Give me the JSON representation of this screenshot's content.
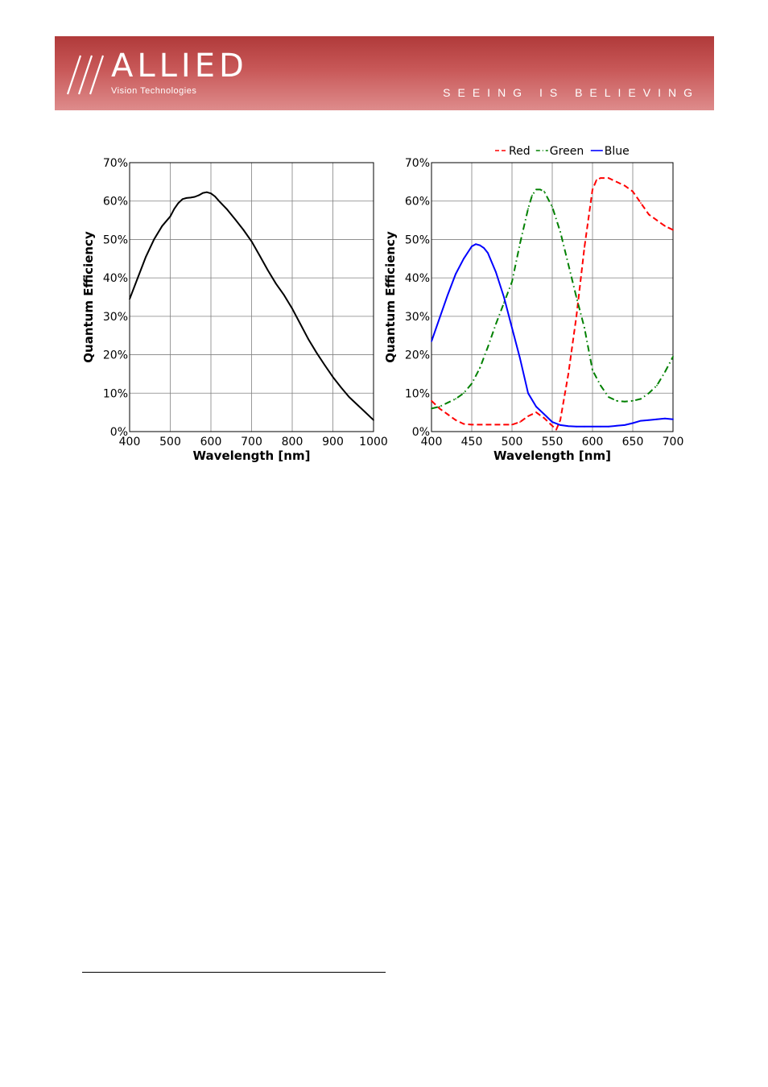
{
  "header": {
    "brand": "ALLIED",
    "brand_sub": "Vision Technologies",
    "tagline": "SEEING IS BELIEVING",
    "logo_icon": "triple-slash-logo-icon",
    "banner_color": "#c04848"
  },
  "chart_data": [
    {
      "type": "line",
      "title": "",
      "xlabel": "Wavelength [nm]",
      "ylabel": "Quantum Efficiency",
      "xlim": [
        400,
        1000
      ],
      "ylim": [
        0,
        70
      ],
      "xticks": [
        "400",
        "500",
        "600",
        "700",
        "800",
        "900",
        "1000"
      ],
      "yticks": [
        "0%",
        "10%",
        "20%",
        "30%",
        "40%",
        "50%",
        "60%",
        "70%"
      ],
      "grid": true,
      "legend": "none",
      "series": [
        {
          "color": "#000000",
          "style": "solid",
          "x": [
            400,
            420,
            440,
            460,
            480,
            500,
            510,
            520,
            530,
            540,
            550,
            560,
            570,
            580,
            590,
            600,
            610,
            620,
            640,
            660,
            680,
            700,
            720,
            740,
            760,
            780,
            800,
            820,
            840,
            860,
            880,
            900,
            920,
            940,
            960,
            980,
            1000
          ],
          "y": [
            34.5,
            40,
            45.5,
            50,
            53.5,
            56,
            58,
            59.5,
            60.5,
            60.8,
            60.9,
            61.1,
            61.5,
            62.1,
            62.3,
            62,
            61.2,
            60,
            57.8,
            55.2,
            52.5,
            49.5,
            45.8,
            42,
            38.5,
            35.5,
            32,
            28,
            24,
            20.5,
            17.3,
            14.2,
            11.5,
            9,
            7,
            5,
            3
          ]
        }
      ]
    },
    {
      "type": "line",
      "title": "",
      "xlabel": "Wavelength [nm]",
      "ylabel": "Quantum Efficiency",
      "xlim": [
        400,
        700
      ],
      "ylim": [
        0,
        70
      ],
      "xticks": [
        "400",
        "450",
        "500",
        "550",
        "600",
        "650",
        "700"
      ],
      "yticks": [
        "0%",
        "10%",
        "20%",
        "30%",
        "40%",
        "50%",
        "60%",
        "70%"
      ],
      "grid": true,
      "legend": "top",
      "series": [
        {
          "name": "Red",
          "color": "#ff0000",
          "style": "dashed",
          "x": [
            400,
            410,
            420,
            430,
            440,
            450,
            460,
            470,
            480,
            490,
            500,
            510,
            520,
            530,
            540,
            550,
            555,
            560,
            570,
            580,
            590,
            600,
            605,
            610,
            620,
            630,
            640,
            650,
            660,
            670,
            680,
            690,
            700
          ],
          "y": [
            8,
            6,
            4.5,
            3,
            2,
            1.8,
            1.8,
            1.8,
            1.8,
            1.8,
            1.8,
            2.5,
            4,
            5,
            3.5,
            1.5,
            0.5,
            3,
            15,
            30,
            48,
            63,
            65.5,
            66,
            66,
            65,
            64,
            62.5,
            59.5,
            56.5,
            55,
            53.5,
            52.5
          ]
        },
        {
          "name": "Green",
          "color": "#008000",
          "style": "dash-dot",
          "x": [
            400,
            410,
            420,
            430,
            440,
            450,
            460,
            470,
            480,
            490,
            500,
            510,
            520,
            525,
            530,
            535,
            540,
            550,
            560,
            570,
            580,
            590,
            600,
            610,
            620,
            630,
            640,
            650,
            660,
            670,
            680,
            690,
            700
          ],
          "y": [
            6,
            6.5,
            7.5,
            8.5,
            10,
            12.5,
            16.5,
            22,
            28,
            33.5,
            39,
            49,
            58,
            61.5,
            63,
            63,
            62.5,
            58.5,
            52,
            43.5,
            35,
            27,
            16,
            12,
            9,
            8,
            7.8,
            8,
            8.5,
            10,
            12,
            15.5,
            19.5
          ]
        },
        {
          "name": "Blue",
          "color": "#0000ff",
          "style": "solid",
          "x": [
            400,
            410,
            420,
            430,
            440,
            450,
            455,
            460,
            465,
            470,
            480,
            490,
            500,
            510,
            520,
            530,
            540,
            550,
            560,
            570,
            580,
            590,
            600,
            610,
            620,
            630,
            640,
            650,
            660,
            670,
            680,
            690,
            700
          ],
          "y": [
            23.5,
            29.5,
            35.5,
            41,
            45,
            48.2,
            48.8,
            48.5,
            47.8,
            46.5,
            41.5,
            35,
            27,
            19,
            10,
            6.5,
            4.5,
            2.5,
            1.7,
            1.4,
            1.3,
            1.3,
            1.3,
            1.3,
            1.3,
            1.5,
            1.7,
            2.2,
            2.8,
            3,
            3.2,
            3.4,
            3.2
          ]
        }
      ]
    }
  ]
}
